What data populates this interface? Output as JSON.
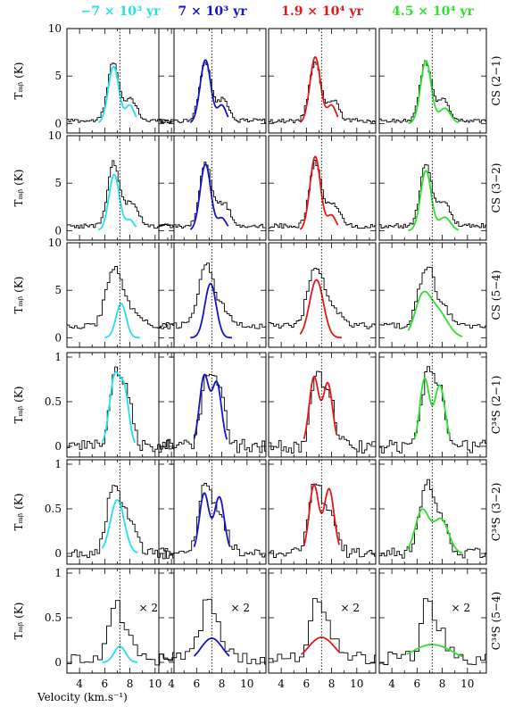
{
  "chart_data": {
    "type": "line",
    "xlabel": "Velocity (km.s⁻¹)",
    "ylabel": "Tₘᵦ (K)",
    "xlim": [
      3,
      11.5
    ],
    "xticks": [
      4,
      6,
      8,
      10
    ],
    "systemic_velocity": 7.2,
    "columns": [
      {
        "label": "−7 × 10³ yr",
        "color": "#22e0ee"
      },
      {
        "label": "7 × 10³ yr",
        "color": "#1414c8"
      },
      {
        "label": "1.9 × 10⁴ yr",
        "color": "#e41818"
      },
      {
        "label": "4.5 × 10⁴ yr",
        "color": "#2ee02e"
      }
    ],
    "rows": [
      {
        "label": "CS (2−1)",
        "ylim": [
          -1,
          10
        ],
        "yticks": [
          0,
          5,
          10
        ],
        "ytick_labels": [
          "0",
          "5",
          "10"
        ],
        "annotation": ""
      },
      {
        "label": "CS (3−2)",
        "ylim": [
          -1,
          10
        ],
        "yticks": [
          0,
          5,
          10
        ],
        "ytick_labels": [
          "0",
          "5",
          "10"
        ],
        "annotation": ""
      },
      {
        "label": "CS (5−4)",
        "ylim": [
          -1,
          10
        ],
        "yticks": [
          0,
          5,
          10
        ],
        "ytick_labels": [
          "0",
          "5",
          "10"
        ],
        "annotation": ""
      },
      {
        "label": "C³⁴S (2−1)",
        "ylim": [
          -0.12,
          1.05
        ],
        "yticks": [
          0,
          0.5,
          1
        ],
        "ytick_labels": [
          "0",
          "0.5",
          "1"
        ],
        "annotation": ""
      },
      {
        "label": "C³⁴S (3−2)",
        "ylim": [
          -0.12,
          1.05
        ],
        "yticks": [
          0,
          0.5,
          1
        ],
        "ytick_labels": [
          "0",
          "0.5",
          "1"
        ],
        "annotation": ""
      },
      {
        "label": "C³⁴S (5−4)",
        "ylim": [
          -0.12,
          1.05
        ],
        "yticks": [
          0,
          0.5,
          1
        ],
        "ytick_labels": [
          "0",
          "0.5",
          "1"
        ],
        "annotation": "× 2"
      }
    ],
    "observed": [
      {
        "baseline": 0.3,
        "noise": 0.22,
        "components": [
          [
            6.7,
            0.45,
            6.2
          ],
          [
            8.1,
            0.45,
            2.2
          ]
        ],
        "step": 0.15
      },
      {
        "baseline": 0.5,
        "noise": 0.25,
        "components": [
          [
            6.7,
            0.45,
            6.6
          ],
          [
            8.1,
            0.55,
            2.4
          ]
        ],
        "step": 0.15
      },
      {
        "baseline": 1.3,
        "noise": 0.35,
        "components": [
          [
            6.3,
            0.45,
            3.2
          ],
          [
            7.0,
            0.45,
            4.8
          ],
          [
            8.1,
            0.6,
            1.8
          ]
        ],
        "step": 0.2
      },
      {
        "baseline": 0.0,
        "noise": 0.08,
        "components": [
          [
            6.8,
            0.45,
            0.78
          ],
          [
            7.8,
            0.45,
            0.6
          ]
        ],
        "step": 0.2
      },
      {
        "baseline": 0.0,
        "noise": 0.06,
        "components": [
          [
            6.7,
            0.5,
            0.78
          ],
          [
            7.9,
            0.55,
            0.4
          ]
        ],
        "step": 0.2
      },
      {
        "baseline": 0.05,
        "noise": 0.08,
        "components": [
          [
            6.8,
            0.5,
            0.6
          ],
          [
            7.9,
            0.5,
            0.25
          ]
        ],
        "step": 0.35
      }
    ],
    "models": [
      [
        {
          "x0": 5.5,
          "x1": 8.5,
          "components": [
            [
              6.7,
              0.42,
              6.0
            ],
            [
              8.0,
              0.35,
              1.9
            ]
          ]
        },
        {
          "x0": 5.5,
          "x1": 8.5,
          "components": [
            [
              6.7,
              0.42,
              6.7
            ],
            [
              8.0,
              0.35,
              1.9
            ]
          ]
        },
        {
          "x0": 5.5,
          "x1": 8.5,
          "components": [
            [
              6.7,
              0.42,
              7.0
            ],
            [
              8.0,
              0.35,
              1.9
            ]
          ]
        },
        {
          "x0": 5.3,
          "x1": 9.3,
          "components": [
            [
              6.7,
              0.42,
              6.6
            ],
            [
              8.2,
              0.45,
              1.6
            ]
          ]
        }
      ],
      [
        {
          "x0": 5.5,
          "x1": 8.5,
          "components": [
            [
              6.75,
              0.42,
              5.9
            ],
            [
              8.0,
              0.35,
              1.1
            ]
          ]
        },
        {
          "x0": 5.5,
          "x1": 8.5,
          "components": [
            [
              6.7,
              0.42,
              7.0
            ],
            [
              8.0,
              0.35,
              1.3
            ]
          ]
        },
        {
          "x0": 5.5,
          "x1": 8.5,
          "components": [
            [
              6.7,
              0.42,
              7.8
            ],
            [
              8.0,
              0.35,
              1.6
            ]
          ]
        },
        {
          "x0": 5.3,
          "x1": 9.3,
          "components": [
            [
              6.7,
              0.42,
              6.3
            ],
            [
              8.2,
              0.45,
              1.4
            ]
          ]
        }
      ],
      [
        {
          "x0": 6.0,
          "x1": 8.8,
          "components": [
            [
              7.3,
              0.4,
              3.6
            ]
          ]
        },
        {
          "x0": 5.5,
          "x1": 8.8,
          "components": [
            [
              7.1,
              0.45,
              5.7
            ]
          ]
        },
        {
          "x0": 5.5,
          "x1": 8.8,
          "components": [
            [
              6.8,
              0.55,
              6.1
            ]
          ]
        },
        {
          "x0": 5.3,
          "x1": 9.6,
          "components": [
            [
              6.4,
              0.6,
              3.8
            ],
            [
              7.6,
              0.8,
              2.8
            ]
          ]
        }
      ],
      [
        {
          "x0": 5.8,
          "x1": 8.4,
          "components": [
            [
              6.8,
              0.42,
              0.78
            ],
            [
              7.6,
              0.35,
              0.55
            ]
          ]
        },
        {
          "x0": 5.8,
          "x1": 8.4,
          "components": [
            [
              6.6,
              0.38,
              0.78
            ],
            [
              7.6,
              0.38,
              0.7
            ]
          ]
        },
        {
          "x0": 5.8,
          "x1": 8.4,
          "components": [
            [
              6.6,
              0.38,
              0.77
            ],
            [
              7.7,
              0.38,
              0.7
            ]
          ]
        },
        {
          "x0": 5.8,
          "x1": 8.6,
          "components": [
            [
              6.6,
              0.38,
              0.75
            ],
            [
              7.8,
              0.42,
              0.68
            ]
          ]
        }
      ],
      [
        {
          "x0": 5.8,
          "x1": 8.6,
          "components": [
            [
              7.0,
              0.55,
              0.6
            ]
          ]
        },
        {
          "x0": 5.8,
          "x1": 8.6,
          "components": [
            [
              6.6,
              0.38,
              0.67
            ],
            [
              7.8,
              0.4,
              0.63
            ]
          ]
        },
        {
          "x0": 5.8,
          "x1": 8.6,
          "components": [
            [
              6.6,
              0.38,
              0.76
            ],
            [
              7.8,
              0.4,
              0.72
            ]
          ]
        },
        {
          "x0": 5.2,
          "x1": 9.6,
          "components": [
            [
              6.4,
              0.55,
              0.48
            ],
            [
              7.9,
              0.6,
              0.38
            ]
          ]
        }
      ],
      [
        {
          "x0": 5.8,
          "x1": 8.6,
          "components": [
            [
              7.2,
              0.45,
              0.18
            ]
          ]
        },
        {
          "x0": 5.8,
          "x1": 8.6,
          "components": [
            [
              7.2,
              0.85,
              0.27
            ]
          ]
        },
        {
          "x0": 5.6,
          "x1": 8.6,
          "components": [
            [
              7.2,
              1.05,
              0.28
            ]
          ]
        },
        {
          "x0": 5.2,
          "x1": 9.6,
          "components": [
            [
              7.2,
              1.6,
              0.2
            ]
          ]
        }
      ]
    ]
  }
}
